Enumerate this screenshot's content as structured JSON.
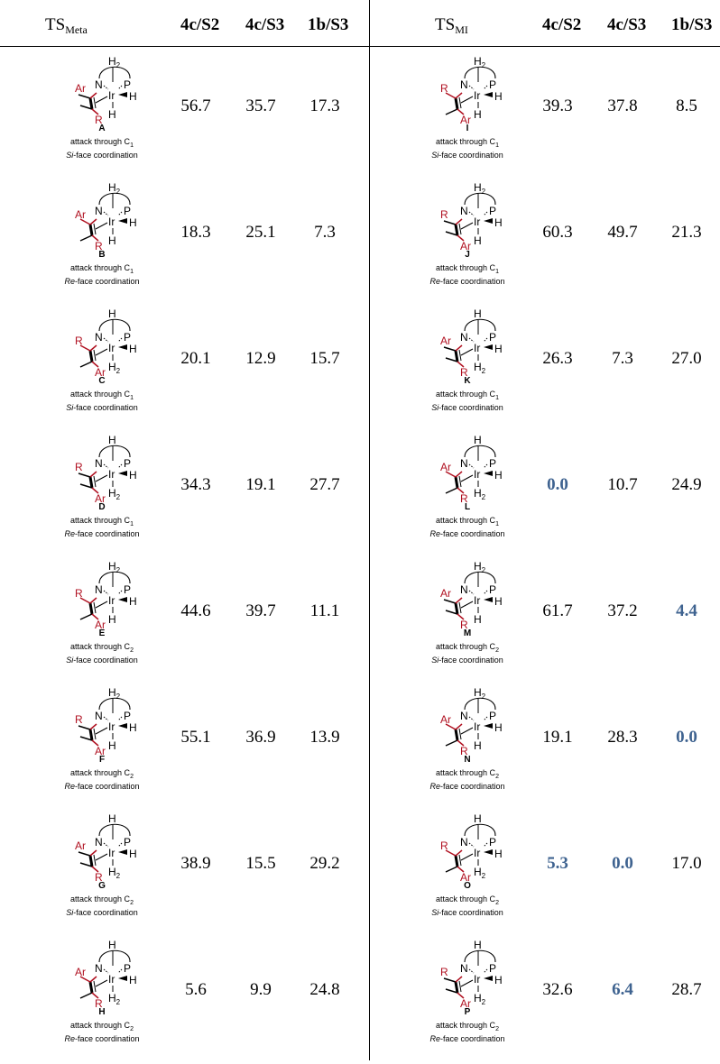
{
  "header": {
    "left_title_main": "TS",
    "left_title_sub": "Meta",
    "right_title_main": "TS",
    "right_title_sub": "MI",
    "cols": [
      "4c/S2",
      "4c/S3",
      "1b/S3"
    ]
  },
  "captions": {
    "attack_prefix": "attack through C",
    "face_suffix": "-face coordination"
  },
  "highlight_color": "#3f6390",
  "accent_color": "#b01020",
  "meta_rows": [
    {
      "letter": "A",
      "top": "H2",
      "bottom": "H",
      "upper_sub": "Ar",
      "lower_sub": "R",
      "stereo": "methyl-up",
      "atom": "1",
      "face": "Si",
      "values": [
        "56.7",
        "35.7",
        "17.3"
      ],
      "bold": [
        false,
        false,
        false
      ]
    },
    {
      "letter": "B",
      "top": "H2",
      "bottom": "H",
      "upper_sub": "Ar",
      "lower_sub": "R",
      "stereo": "methyl-down",
      "atom": "1",
      "face": "Re",
      "values": [
        "18.3",
        "25.1",
        "7.3"
      ],
      "bold": [
        false,
        false,
        false
      ]
    },
    {
      "letter": "C",
      "top": "H",
      "bottom": "H2",
      "upper_sub": "R",
      "lower_sub": "Ar",
      "stereo": "methyl-down",
      "atom": "1",
      "face": "Si",
      "values": [
        "20.1",
        "12.9",
        "15.7"
      ],
      "bold": [
        false,
        false,
        false
      ]
    },
    {
      "letter": "D",
      "top": "H",
      "bottom": "H2",
      "upper_sub": "R",
      "lower_sub": "Ar",
      "stereo": "methyl-up",
      "atom": "1",
      "face": "Re",
      "values": [
        "34.3",
        "19.1",
        "27.7"
      ],
      "bold": [
        false,
        false,
        false
      ]
    },
    {
      "letter": "E",
      "top": "H2",
      "bottom": "H",
      "upper_sub": "R",
      "lower_sub": "Ar",
      "stereo": "methyl-down",
      "atom": "2",
      "face": "Si",
      "values": [
        "44.6",
        "39.7",
        "11.1"
      ],
      "bold": [
        false,
        false,
        false
      ]
    },
    {
      "letter": "F",
      "top": "H2",
      "bottom": "H",
      "upper_sub": "R",
      "lower_sub": "Ar",
      "stereo": "methyl-up",
      "atom": "2",
      "face": "Re",
      "values": [
        "55.1",
        "36.9",
        "13.9"
      ],
      "bold": [
        false,
        false,
        false
      ]
    },
    {
      "letter": "G",
      "top": "H",
      "bottom": "H2",
      "upper_sub": "Ar",
      "lower_sub": "R",
      "stereo": "methyl-up",
      "atom": "2",
      "face": "Si",
      "values": [
        "38.9",
        "15.5",
        "29.2"
      ],
      "bold": [
        false,
        false,
        false
      ]
    },
    {
      "letter": "H",
      "top": "H",
      "bottom": "H2",
      "upper_sub": "Ar",
      "lower_sub": "R",
      "stereo": "methyl-down",
      "atom": "2",
      "face": "Re",
      "values": [
        "5.6",
        "9.9",
        "24.8"
      ],
      "bold": [
        false,
        false,
        false
      ]
    }
  ],
  "mi_rows": [
    {
      "letter": "I",
      "top": "H2",
      "bottom": "H",
      "upper_sub": "R",
      "lower_sub": "Ar",
      "stereo": "methyl-down",
      "atom": "1",
      "face": "Si",
      "values": [
        "39.3",
        "37.8",
        "8.5"
      ],
      "bold": [
        false,
        false,
        false
      ]
    },
    {
      "letter": "J",
      "top": "H2",
      "bottom": "H",
      "upper_sub": "R",
      "lower_sub": "Ar",
      "stereo": "methyl-up",
      "atom": "1",
      "face": "Re",
      "values": [
        "60.3",
        "49.7",
        "21.3"
      ],
      "bold": [
        false,
        false,
        false
      ]
    },
    {
      "letter": "K",
      "top": "H",
      "bottom": "H2",
      "upper_sub": "Ar",
      "lower_sub": "R",
      "stereo": "methyl-up",
      "atom": "1",
      "face": "Si",
      "values": [
        "26.3",
        "7.3",
        "27.0"
      ],
      "bold": [
        false,
        false,
        false
      ]
    },
    {
      "letter": "L",
      "top": "H",
      "bottom": "H2",
      "upper_sub": "Ar",
      "lower_sub": "R",
      "stereo": "methyl-down",
      "atom": "1",
      "face": "Re",
      "values": [
        "0.0",
        "10.7",
        "24.9"
      ],
      "bold": [
        true,
        false,
        false
      ]
    },
    {
      "letter": "M",
      "top": "H2",
      "bottom": "H",
      "upper_sub": "Ar",
      "lower_sub": "R",
      "stereo": "methyl-up",
      "atom": "2",
      "face": "Si",
      "values": [
        "61.7",
        "37.2",
        "4.4"
      ],
      "bold": [
        false,
        false,
        true
      ]
    },
    {
      "letter": "N",
      "top": "H2",
      "bottom": "H",
      "upper_sub": "Ar",
      "lower_sub": "R",
      "stereo": "methyl-down",
      "atom": "2",
      "face": "Re",
      "values": [
        "19.1",
        "28.3",
        "0.0"
      ],
      "bold": [
        false,
        false,
        true
      ]
    },
    {
      "letter": "O",
      "top": "H",
      "bottom": "H2",
      "upper_sub": "R",
      "lower_sub": "Ar",
      "stereo": "methyl-down",
      "atom": "2",
      "face": "Si",
      "values": [
        "5.3",
        "0.0",
        "17.0"
      ],
      "bold": [
        true,
        true,
        false
      ]
    },
    {
      "letter": "P",
      "top": "H",
      "bottom": "H2",
      "upper_sub": "R",
      "lower_sub": "Ar",
      "stereo": "methyl-up",
      "atom": "2",
      "face": "Re",
      "values": [
        "32.6",
        "6.4",
        "28.7"
      ],
      "bold": [
        false,
        true,
        false
      ]
    }
  ]
}
